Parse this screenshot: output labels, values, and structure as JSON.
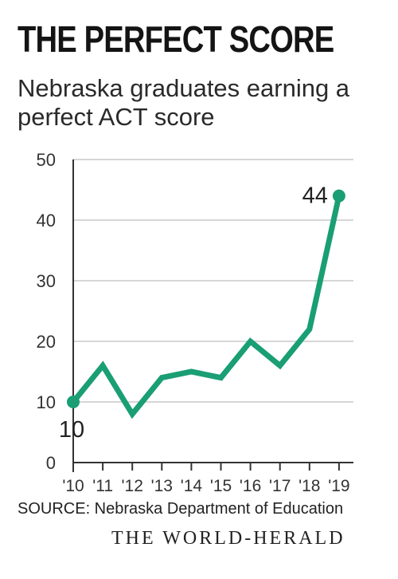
{
  "title": "THE PERFECT SCORE",
  "subtitle": "Nebraska graduates earning a perfect ACT score",
  "source": "SOURCE: Nebraska Department of Education",
  "brand": "THE WORLD-HERALD",
  "colors": {
    "line": "#1a9e74",
    "text": "#222222",
    "grid": "#c8c8c8",
    "axis": "#333333"
  },
  "chart_data": {
    "type": "line",
    "title": "THE PERFECT SCORE",
    "subtitle": "Nebraska graduates earning a perfect ACT score",
    "categories": [
      "'10",
      "'11",
      "'12",
      "'13",
      "'14",
      "'15",
      "'16",
      "'17",
      "'18",
      "'19"
    ],
    "series": [
      {
        "values": [
          10,
          16,
          8,
          14,
          15,
          14,
          20,
          16,
          22,
          44
        ]
      }
    ],
    "y_ticks": [
      "0",
      "10",
      "20",
      "30",
      "40",
      "50"
    ],
    "ylim": [
      0,
      50
    ],
    "grid": true,
    "annotations": [
      {
        "category": "'10",
        "value": 10,
        "text": "10"
      },
      {
        "category": "'19",
        "value": 44,
        "text": "44"
      }
    ]
  }
}
